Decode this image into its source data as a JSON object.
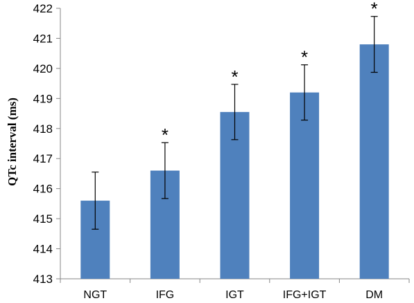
{
  "chart_data": {
    "type": "bar",
    "title": "",
    "xlabel": "",
    "ylabel": "QTc interval (ms)",
    "categories": [
      "NGT",
      "IFG",
      "IGT",
      "IFG+IGT",
      "DM"
    ],
    "values": [
      415.6,
      416.6,
      418.55,
      419.2,
      420.8
    ],
    "error": [
      0.95,
      0.93,
      0.92,
      0.92,
      0.93
    ],
    "significance": [
      "",
      "*",
      "*",
      "*",
      "*"
    ],
    "ylim": [
      413,
      422
    ],
    "yticks": [
      413,
      414,
      415,
      416,
      417,
      418,
      419,
      420,
      421,
      422
    ],
    "grid": false,
    "legend": "none",
    "bar_color": "#4f81bd"
  }
}
